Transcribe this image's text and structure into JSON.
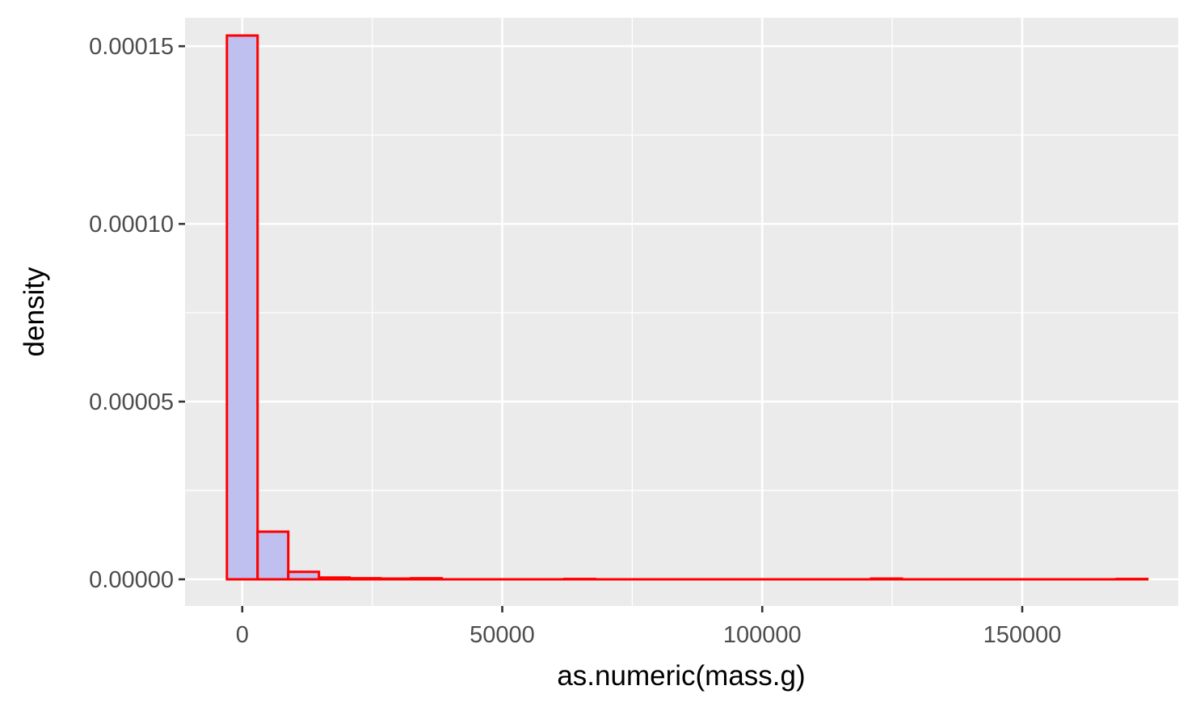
{
  "colors": {
    "panel_background": "#EBEBEB",
    "grid_line": "#FFFFFF",
    "bar_fill": "#BFBFF0",
    "bar_outline": "#FF0000",
    "tick_label": "#4D4D4D",
    "axis_title": "#000000"
  },
  "chart_data": {
    "type": "bar",
    "subtype": "histogram",
    "title": "",
    "xlabel": "as.numeric(mass.g)",
    "ylabel": "density",
    "xlim": [
      -11000,
      180000
    ],
    "ylim": [
      -7.5e-06,
      0.000158
    ],
    "x_ticks": [
      {
        "value": 0,
        "label": "0"
      },
      {
        "value": 50000,
        "label": "50000"
      },
      {
        "value": 100000,
        "label": "100000"
      },
      {
        "value": 150000,
        "label": "150000"
      }
    ],
    "y_ticks": [
      {
        "value": 0,
        "label": "0.00000"
      },
      {
        "value": 5e-05,
        "label": "0.00005"
      },
      {
        "value": 0.0001,
        "label": "0.00010"
      },
      {
        "value": 0.00015,
        "label": "0.00015"
      }
    ],
    "grid": true,
    "bin_width": 5900,
    "bin_starts": [
      -2950,
      2950,
      8850,
      14750,
      20650,
      26550,
      32450,
      38350,
      44250,
      50150,
      56050,
      61950,
      67850,
      73750,
      79650,
      85550,
      91450,
      97350,
      103250,
      109150,
      115050,
      120950,
      126850,
      132750,
      138650,
      144550,
      150450,
      156350,
      162250,
      168150
    ],
    "values": [
      0.000153,
      1.34e-05,
      2.1e-06,
      5e-07,
      3e-07,
      2e-07,
      3e-07,
      0.0,
      0.0,
      0.0,
      0.0,
      1e-07,
      0.0,
      0.0,
      0.0,
      0.0,
      0.0,
      0.0,
      0.0,
      0.0,
      0.0,
      2e-07,
      0.0,
      0.0,
      0.0,
      0.0,
      0.0,
      0.0,
      0.0,
      1e-07
    ]
  }
}
